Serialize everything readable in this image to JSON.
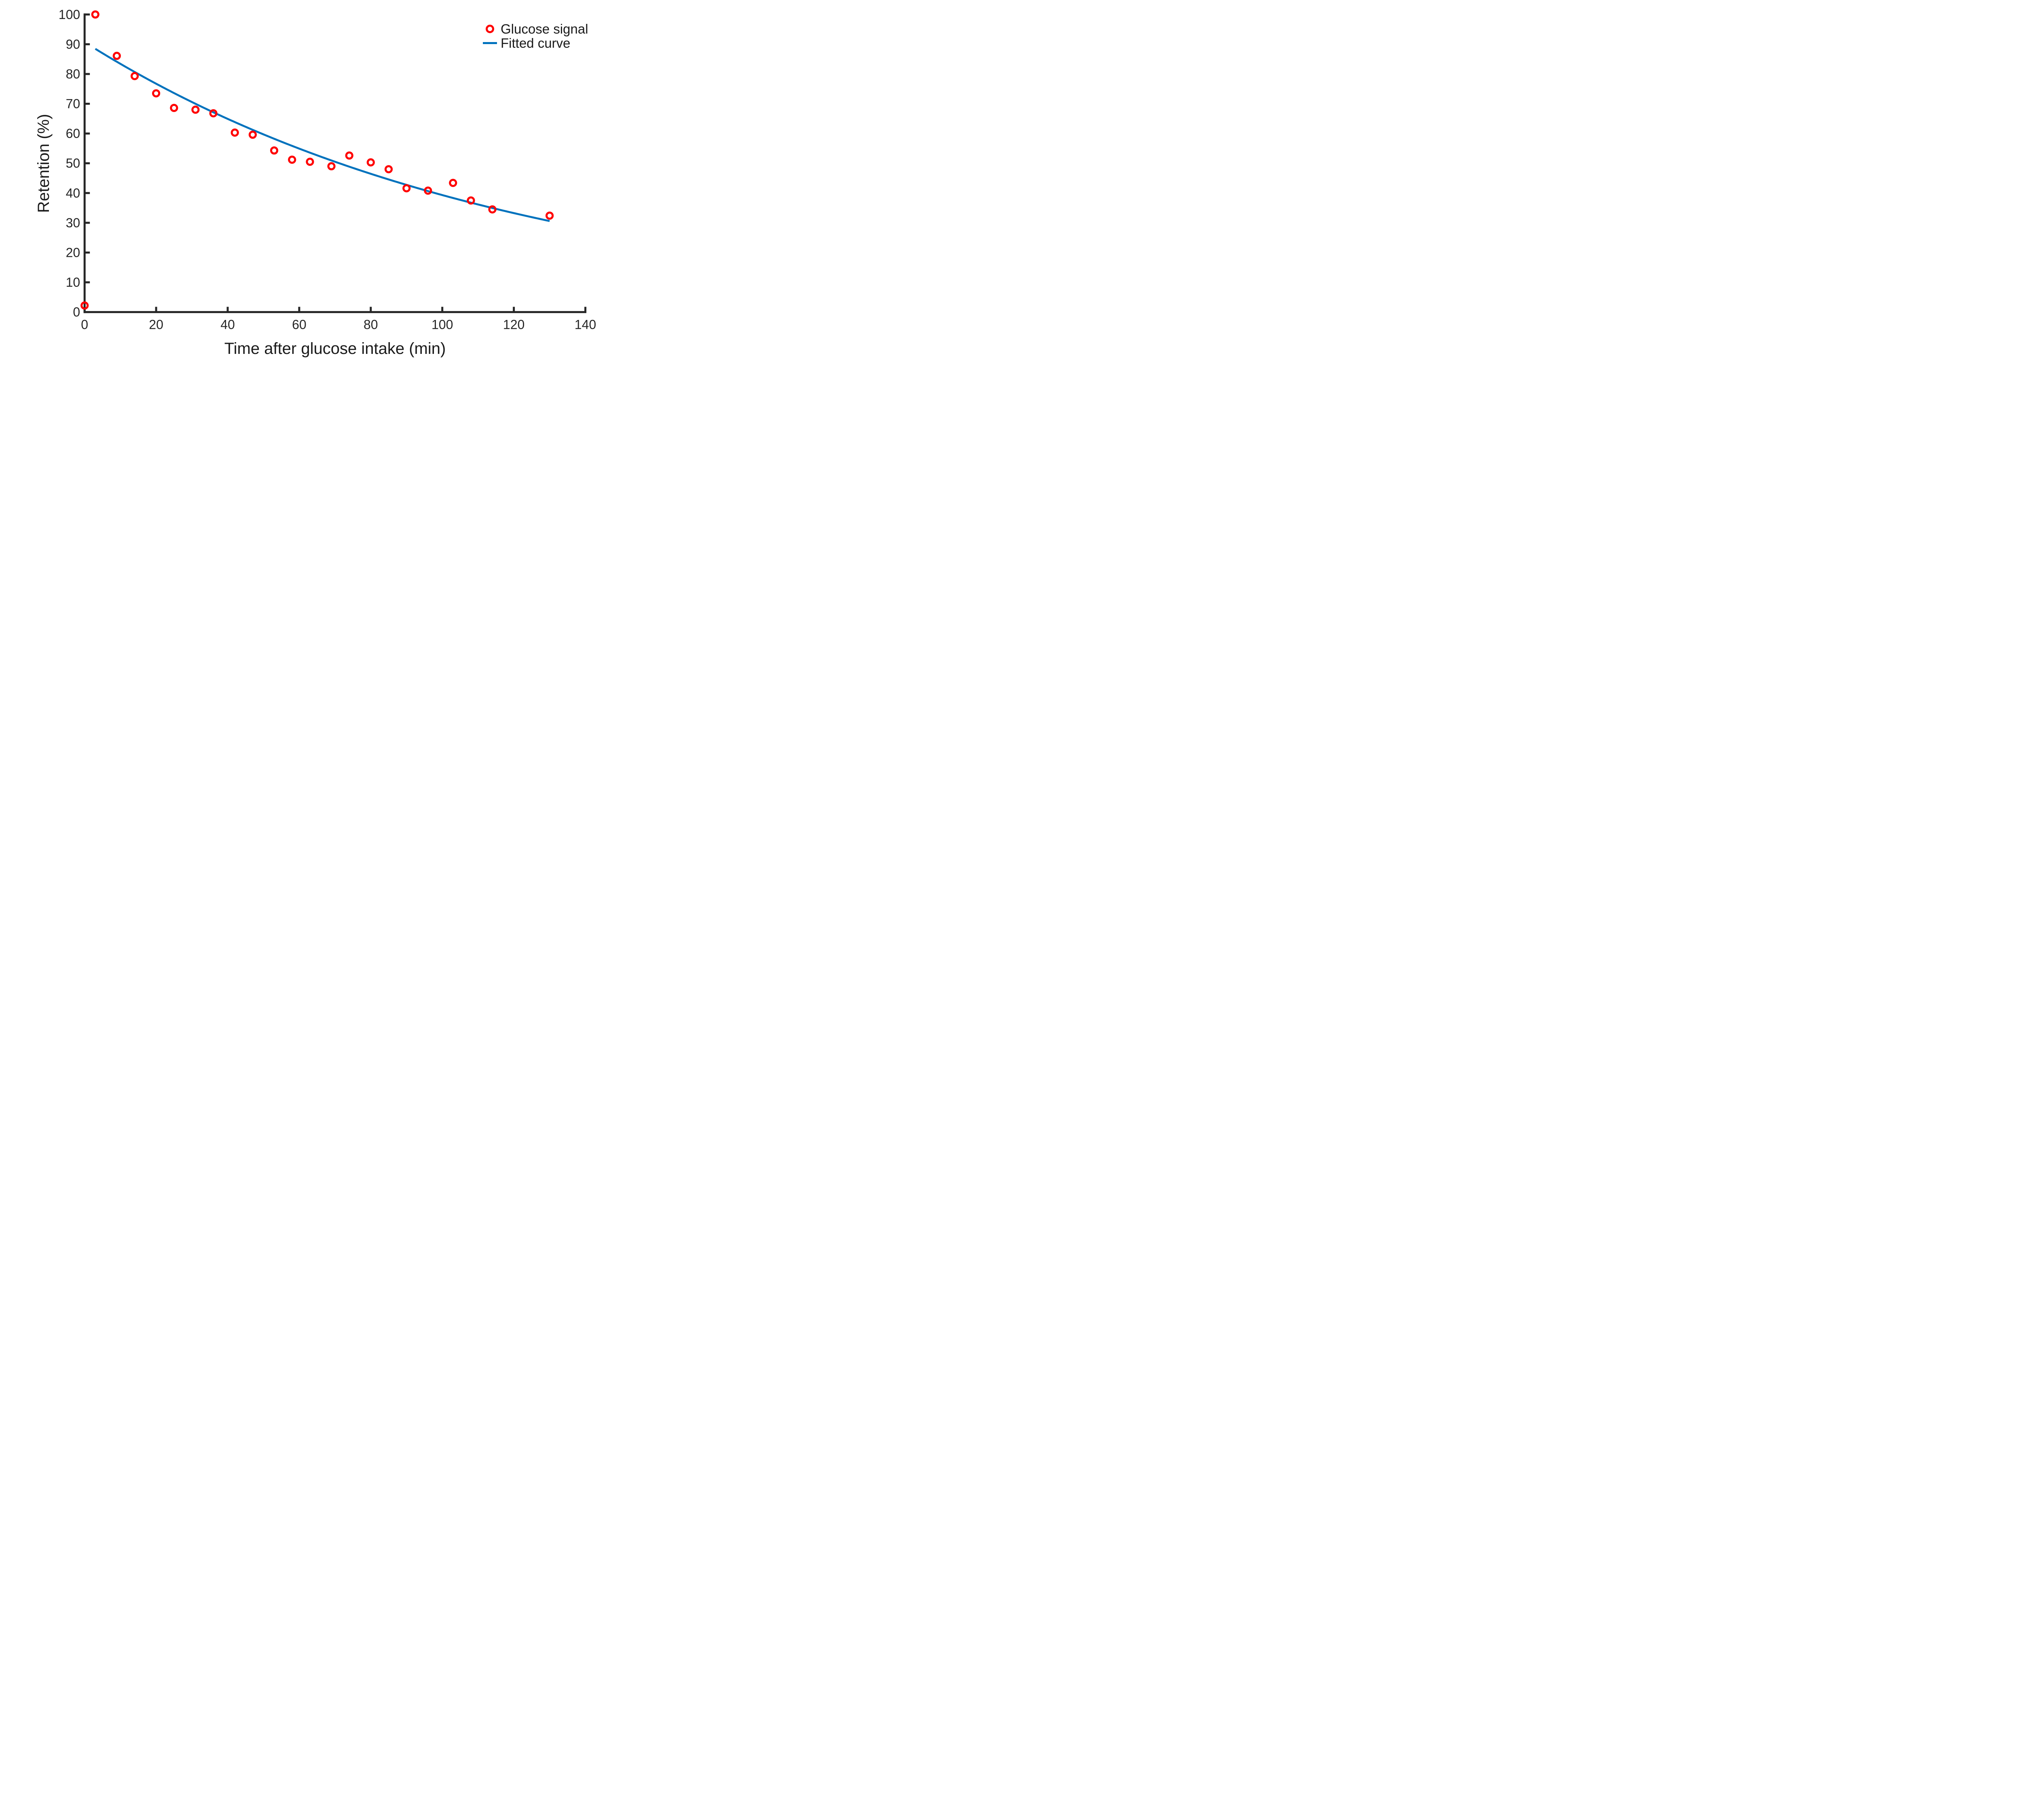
{
  "chart_data": {
    "type": "scatter",
    "title": "",
    "xlabel": "Time after glucose intake (min)",
    "ylabel": "Retention (%)",
    "xlim": [
      0,
      140
    ],
    "ylim": [
      0,
      100
    ],
    "xticks": [
      0,
      20,
      40,
      60,
      80,
      100,
      120,
      140
    ],
    "yticks": [
      0,
      10,
      20,
      30,
      40,
      50,
      60,
      70,
      80,
      90,
      100
    ],
    "grid": false,
    "axis_color": "#262626",
    "tick_label_color": "#262626",
    "text_color": "#1a1a1a",
    "legend_position": "northeast",
    "series": [
      {
        "name": "Glucose signal",
        "type": "scatter",
        "marker": "open-circle",
        "color": "#FF0000",
        "points": [
          [
            0,
            2.2
          ],
          [
            3,
            100
          ],
          [
            9,
            86.1
          ],
          [
            14,
            79.3
          ],
          [
            20,
            73.5
          ],
          [
            25,
            68.6
          ],
          [
            31,
            68.0
          ],
          [
            36,
            66.8
          ],
          [
            42,
            60.3
          ],
          [
            47,
            59.6
          ],
          [
            53,
            54.3
          ],
          [
            58,
            51.2
          ],
          [
            63,
            50.5
          ],
          [
            69,
            49.0
          ],
          [
            74,
            52.6
          ],
          [
            80,
            50.3
          ],
          [
            85,
            48.0
          ],
          [
            90,
            41.6
          ],
          [
            96,
            40.8
          ],
          [
            103,
            43.4
          ],
          [
            108,
            37.5
          ],
          [
            114,
            34.5
          ],
          [
            130,
            32.4
          ]
        ]
      },
      {
        "name": "Fitted curve",
        "type": "line",
        "color": "#0072BD",
        "fit_model": "a*exp(-b*t)",
        "a": 90.7,
        "b": 0.00836,
        "t_start": 3,
        "t_end": 130
      }
    ]
  }
}
